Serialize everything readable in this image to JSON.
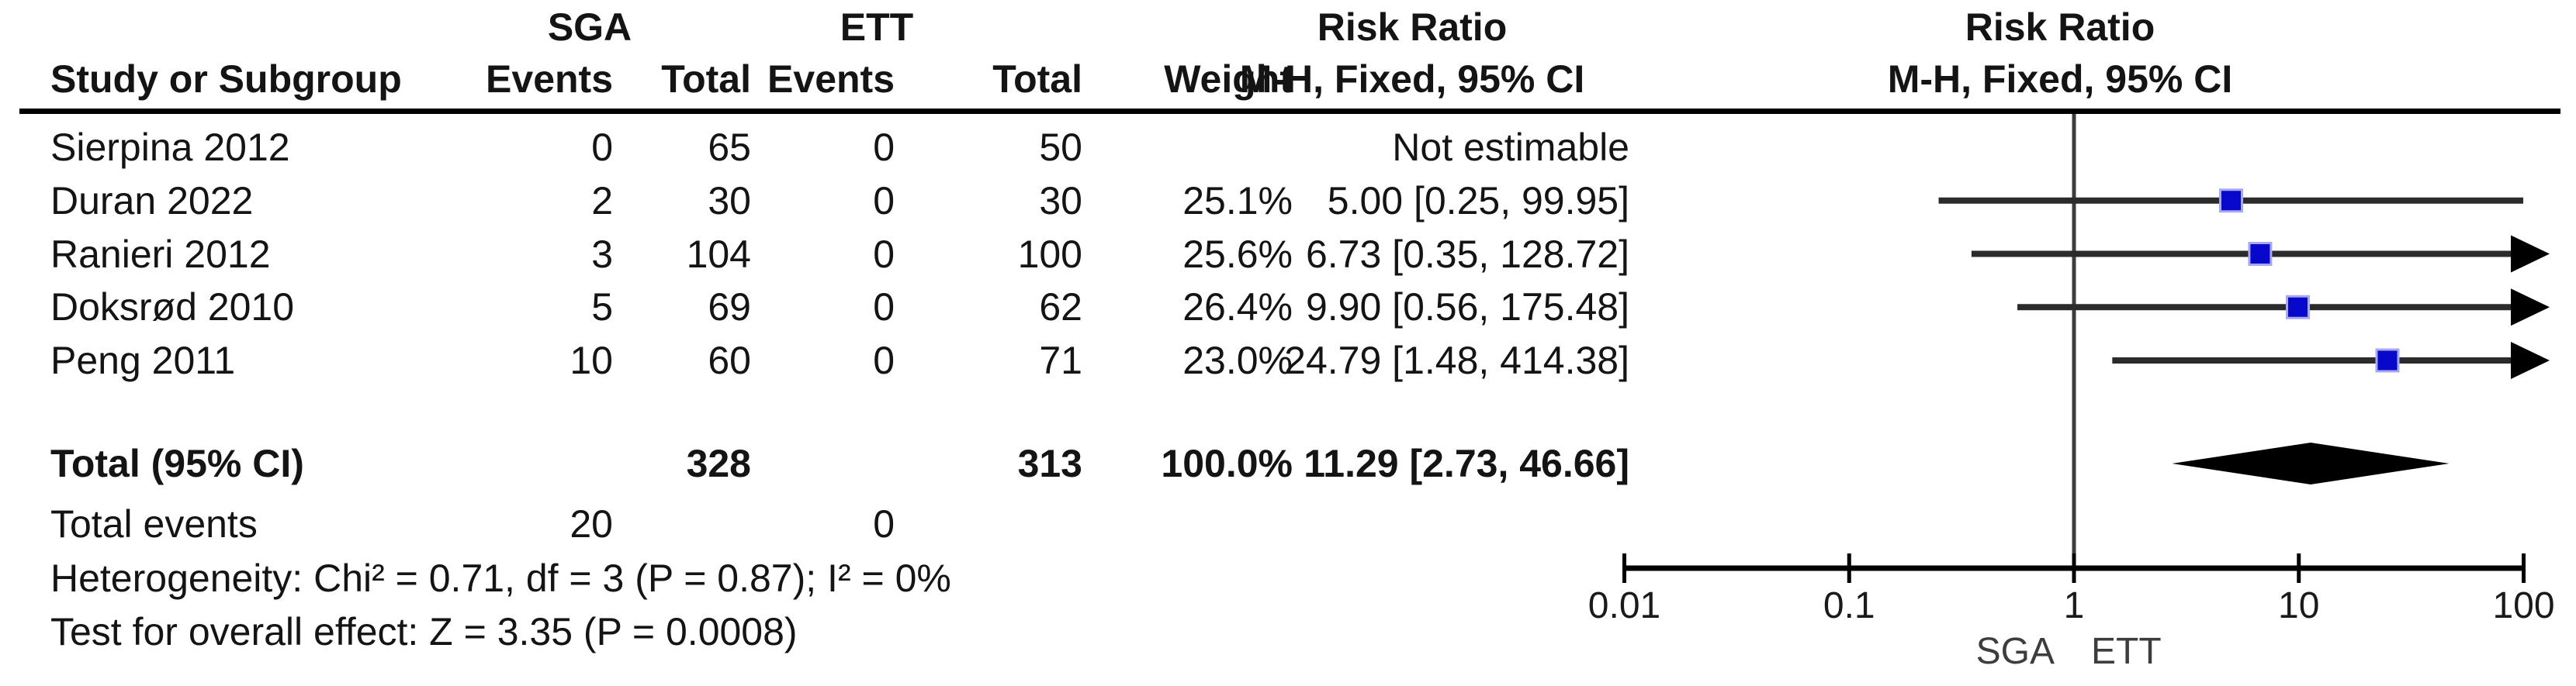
{
  "header": {
    "group_sga": "SGA",
    "group_ett": "ETT",
    "risk_ratio_col": "Risk Ratio",
    "risk_ratio_plot": "Risk Ratio",
    "study": "Study or Subgroup",
    "sga_events": "Events",
    "sga_total": "Total",
    "ett_events": "Events",
    "ett_total": "Total",
    "weight": "Weight",
    "mh_fixed_col": "M-H, Fixed, 95% CI",
    "mh_fixed_plot": "M-H, Fixed, 95% CI"
  },
  "footer": {
    "heterogeneity": "Heterogeneity: Chi² = 0.71, df = 3 (P = 0.87); I² = 0%",
    "overall_effect": "Test for overall effect: Z = 3.35 (P = 0.0008)"
  },
  "chart_data": {
    "type": "forest",
    "effect_measure": "Risk Ratio, M-H, Fixed, 95% CI",
    "x_scale": "log10",
    "axis_range": [
      0.01,
      100
    ],
    "axis_ticks": [
      "0.01",
      "0.1",
      "1",
      "10",
      "100"
    ],
    "favours_left": "SGA",
    "favours_right": "ETT",
    "marker_color": "#0808cc",
    "marker_edge_color": "#a8a8ee",
    "ci_line_color": "#2b2b2b",
    "diamond_color": "#000000",
    "studies": [
      {
        "name": "Sierpina 2012",
        "sga_events": "0",
        "sga_total": "65",
        "ett_events": "0",
        "ett_total": "50",
        "weight": "",
        "rr_text": "Not estimable",
        "rr": null,
        "ci_low": null,
        "ci_high": null
      },
      {
        "name": "Duran 2022",
        "sga_events": "2",
        "sga_total": "30",
        "ett_events": "0",
        "ett_total": "30",
        "weight": "25.1%",
        "rr_text": "5.00 [0.25, 99.95]",
        "rr": 5.0,
        "ci_low": 0.25,
        "ci_high": 99.95
      },
      {
        "name": "Ranieri 2012",
        "sga_events": "3",
        "sga_total": "104",
        "ett_events": "0",
        "ett_total": "100",
        "weight": "25.6%",
        "rr_text": "6.73 [0.35, 128.72]",
        "rr": 6.73,
        "ci_low": 0.35,
        "ci_high": 128.72
      },
      {
        "name": "Doksrød 2010",
        "sga_events": "5",
        "sga_total": "69",
        "ett_events": "0",
        "ett_total": "62",
        "weight": "26.4%",
        "rr_text": "9.90 [0.56, 175.48]",
        "rr": 9.9,
        "ci_low": 0.56,
        "ci_high": 175.48
      },
      {
        "name": "Peng 2011",
        "sga_events": "10",
        "sga_total": "60",
        "ett_events": "0",
        "ett_total": "71",
        "weight": "23.0%",
        "rr_text": "24.79 [1.48, 414.38]",
        "rr": 24.79,
        "ci_low": 1.48,
        "ci_high": 414.38
      }
    ],
    "total_row": {
      "label": "Total (95% CI)",
      "sga_total": "328",
      "ett_total": "313",
      "weight": "100.0%",
      "rr_text": "11.29 [2.73, 46.66]",
      "rr": 11.29,
      "ci_low": 2.73,
      "ci_high": 46.66
    },
    "total_events_row": {
      "label": "Total events",
      "sga_events": "20",
      "ett_events": "0"
    }
  }
}
